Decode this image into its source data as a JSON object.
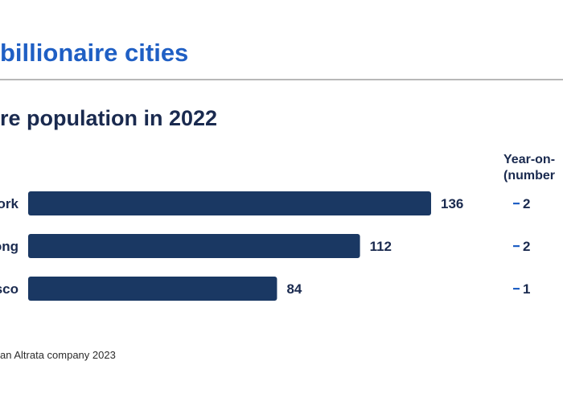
{
  "header": {
    "title": "billionaire cities",
    "subtitle": "re population in 2022"
  },
  "yoy": {
    "header_line1": "Year-on-",
    "header_line2": "(number"
  },
  "footer": {
    "source": "an Altrata company 2023"
  },
  "colors": {
    "title": "#1f5fc4",
    "bar": "#1a3863",
    "text": "#1a2a4f",
    "accent_dash": "#1f5fc4"
  },
  "chart_data": {
    "type": "bar",
    "orientation": "horizontal",
    "title": "re population in 2022",
    "categories": [
      "ork",
      "ong",
      "sco"
    ],
    "values": [
      136,
      112,
      84
    ],
    "value_labels": [
      "136",
      "112",
      "84"
    ],
    "yoy_change": [
      -2,
      -2,
      -1
    ],
    "yoy_labels": [
      "2",
      "2",
      "1"
    ],
    "xlim": [
      0,
      136
    ],
    "grid": false,
    "legend": "none"
  }
}
